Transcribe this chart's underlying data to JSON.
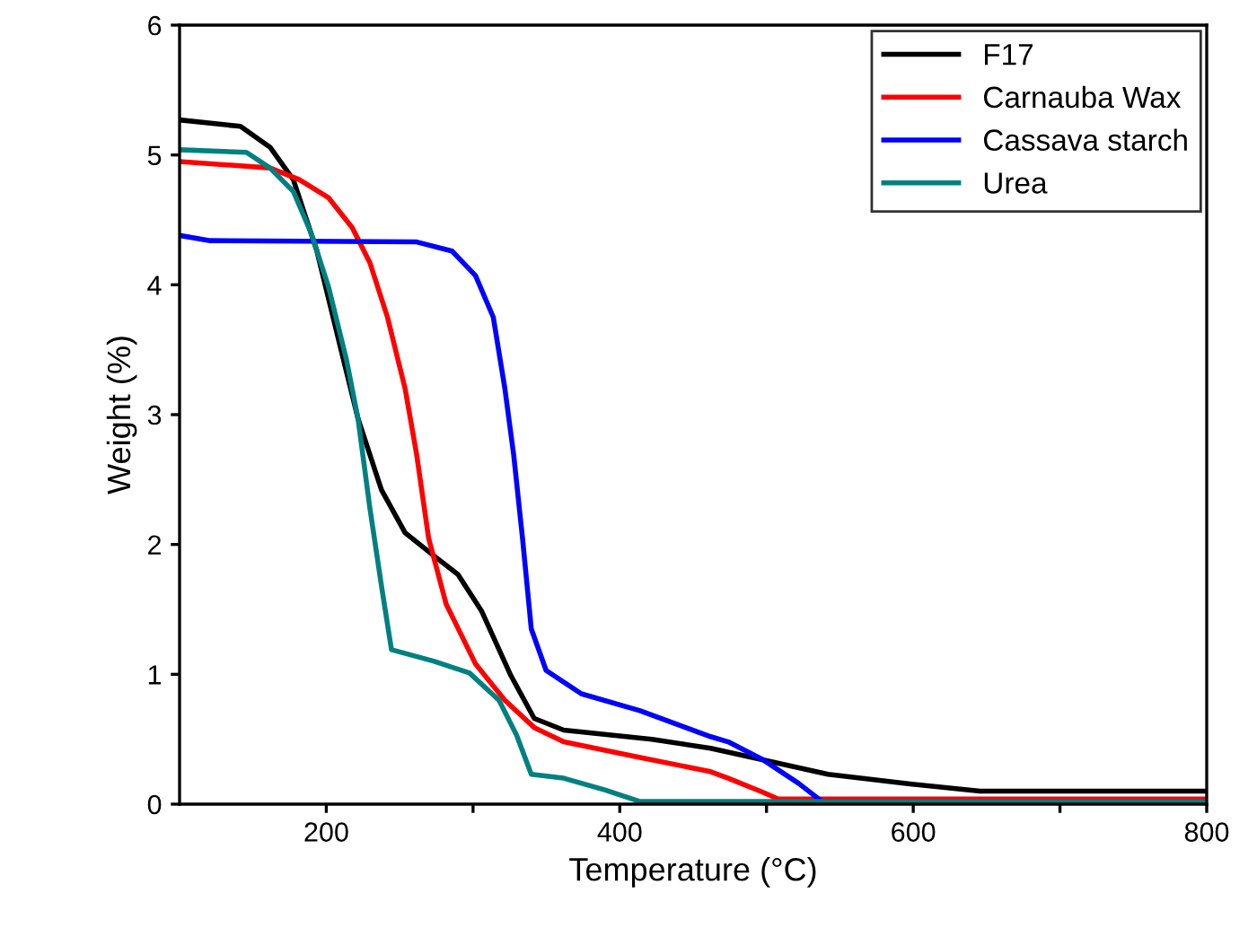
{
  "chart_data": {
    "type": "line",
    "xlabel": "Temperature (°C)",
    "ylabel": "Weight (%)",
    "xlim": [
      100,
      800
    ],
    "xticks": [
      200,
      {
        "value": 300,
        "label": null
      },
      400,
      {
        "value": 500,
        "label": null
      },
      600,
      {
        "value": 700,
        "label": null
      },
      800
    ],
    "ylim": [
      0,
      6
    ],
    "yticks": [
      0,
      1,
      2,
      3,
      4,
      5,
      6
    ],
    "grid": false,
    "legend": "top right",
    "marker": "none",
    "line_style": "solid",
    "series": [
      {
        "name": "F17",
        "color": "#000000",
        "x": [
          100,
          141.5,
          161.6,
          177.5,
          193.6,
          209.6,
          221.6,
          237.6,
          253.7,
          273.6,
          289.7,
          305.7,
          325.8,
          341.7,
          361.8,
          421.9,
          461.9,
          497.9,
          542,
          594,
          645.6,
          800
        ],
        "values": [
          5.27,
          5.22,
          5.06,
          4.81,
          4.26,
          3.52,
          2.97,
          2.42,
          2.09,
          1.91,
          1.77,
          1.49,
          0.99,
          0.66,
          0.57,
          0.5,
          0.43,
          0.34,
          0.23,
          0.16,
          0.1,
          0.1
        ]
      },
      {
        "name": "Carnauba Wax",
        "color": "#ff0000",
        "x": [
          100,
          161.6,
          181.6,
          201.6,
          217.7,
          229.7,
          241.7,
          253.7,
          261.6,
          269.7,
          281.7,
          301.7,
          321.7,
          341.7,
          361.8,
          413.8,
          461.9,
          473.9,
          497.9,
          507.9,
          800
        ],
        "values": [
          4.95,
          4.9,
          4.81,
          4.67,
          4.44,
          4.17,
          3.75,
          3.2,
          2.69,
          2.05,
          1.54,
          1.08,
          0.8,
          0.59,
          0.48,
          0.36,
          0.25,
          0.2,
          0.09,
          0.04,
          0.04
        ]
      },
      {
        "name": "Cassava starch",
        "color": "#0000ff",
        "x": [
          100,
          121,
          261.6,
          285.7,
          301.7,
          313.8,
          321.7,
          327.7,
          333.7,
          339.7,
          349.8,
          373.8,
          413.8,
          461.9,
          473.9,
          497.9,
          521.9,
          537.9,
          800
        ],
        "values": [
          4.38,
          4.34,
          4.33,
          4.26,
          4.07,
          3.75,
          3.2,
          2.69,
          2.05,
          1.35,
          1.03,
          0.85,
          0.72,
          0.52,
          0.48,
          0.34,
          0.16,
          0.02,
          0.02
        ]
      },
      {
        "name": "Urea",
        "color": "#008080",
        "x": [
          100,
          145.6,
          161.6,
          177.5,
          189.6,
          201.6,
          213.6,
          221.6,
          229.7,
          237.6,
          244.4,
          273.6,
          297.6,
          317.7,
          329.7,
          339.7,
          361.8,
          389.8,
          413.8,
          800
        ],
        "values": [
          5.04,
          5.02,
          4.9,
          4.72,
          4.4,
          3.98,
          3.43,
          2.97,
          2.28,
          1.68,
          1.19,
          1.1,
          1.01,
          0.8,
          0.53,
          0.23,
          0.2,
          0.11,
          0.02,
          0.02
        ]
      }
    ]
  }
}
